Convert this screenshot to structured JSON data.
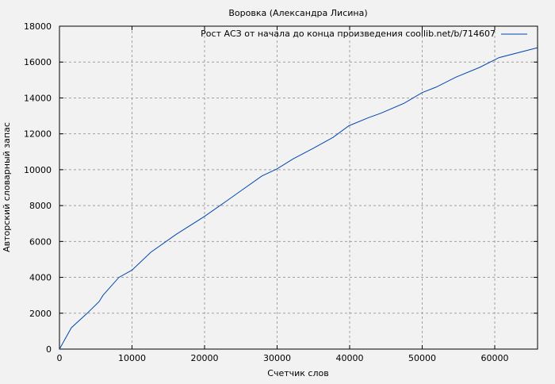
{
  "chart_data": {
    "type": "line",
    "title": "Воровка (Александра Лисина)",
    "xlabel": "Счетчик слов",
    "ylabel": "Авторский словарный запас",
    "xlim": [
      0,
      65900
    ],
    "ylim": [
      0,
      18000
    ],
    "xticks": [
      0,
      10000,
      20000,
      30000,
      40000,
      50000,
      60000
    ],
    "yticks": [
      0,
      2000,
      4000,
      6000,
      8000,
      10000,
      12000,
      14000,
      16000,
      18000
    ],
    "grid": true,
    "legend_position": "top-right",
    "series": [
      {
        "name": "Рост АСЗ от начала до конца произведения coollib.net/b/714607",
        "color": "#0047b3",
        "x": [
          0,
          1640,
          3830,
          5460,
          6000,
          8200,
          10000,
          12600,
          16100,
          20000,
          23000,
          25100,
          27900,
          30000,
          32200,
          35000,
          37700,
          39900,
          42600,
          44300,
          47500,
          50000,
          51900,
          54600,
          57900,
          60600,
          65900
        ],
        "y": [
          0,
          1190,
          2000,
          2650,
          3000,
          4000,
          4400,
          5400,
          6400,
          7400,
          8250,
          8850,
          9650,
          10050,
          10600,
          11200,
          11800,
          12450,
          12900,
          13150,
          13700,
          14300,
          14600,
          15150,
          15700,
          16250,
          16800
        ]
      }
    ]
  }
}
